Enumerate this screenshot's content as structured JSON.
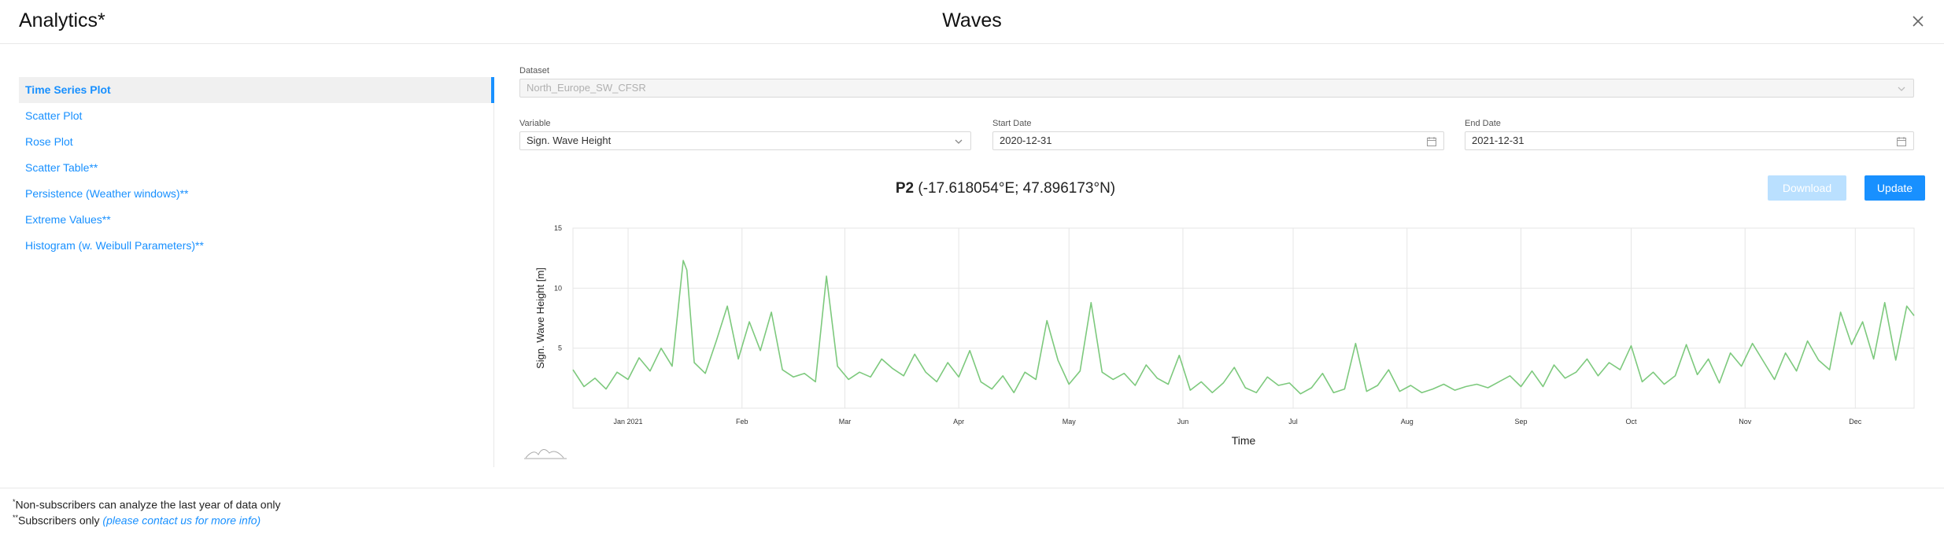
{
  "header": {
    "app_title": "Analytics*",
    "page_title": "Waves",
    "close_icon": "close-icon"
  },
  "sidebar": {
    "items": [
      {
        "label": "Time Series Plot",
        "active": true
      },
      {
        "label": "Scatter Plot"
      },
      {
        "label": "Rose Plot"
      },
      {
        "label": "Scatter Table**"
      },
      {
        "label": "Persistence (Weather windows)**"
      },
      {
        "label": "Extreme Values**"
      },
      {
        "label": "Histogram (w. Weibull Parameters)**"
      }
    ]
  },
  "form": {
    "dataset_label": "Dataset",
    "dataset_value": "North_Europe_SW_CFSR",
    "variable_label": "Variable",
    "variable_value": "Sign. Wave Height",
    "start_label": "Start Date",
    "start_value": "2020-12-31",
    "end_label": "End Date",
    "end_value": "2021-12-31",
    "download_label": "Download",
    "update_label": "Update"
  },
  "chart_title": {
    "point": "P2",
    "coords": "(-17.618054°E; 47.896173°N)"
  },
  "chart_data": {
    "type": "line",
    "title": "P2 (-17.618054°E; 47.896173°N)",
    "xlabel": "Time",
    "ylabel": "Sign. Wave Height [m]",
    "ylim": [
      0,
      15
    ],
    "yticks": [
      5,
      10,
      15
    ],
    "xlim": [
      "2020-12-31",
      "2021-12-31"
    ],
    "xticks": [
      {
        "date": "2021-01-15",
        "label": "Jan 2021"
      },
      {
        "date": "2021-02-15",
        "label": "Feb"
      },
      {
        "date": "2021-03-15",
        "label": "Mar"
      },
      {
        "date": "2021-04-15",
        "label": "Apr"
      },
      {
        "date": "2021-05-15",
        "label": "May"
      },
      {
        "date": "2021-06-15",
        "label": "Jun"
      },
      {
        "date": "2021-07-15",
        "label": "Jul"
      },
      {
        "date": "2021-08-15",
        "label": "Aug"
      },
      {
        "date": "2021-09-15",
        "label": "Sep"
      },
      {
        "date": "2021-10-15",
        "label": "Oct"
      },
      {
        "date": "2021-11-15",
        "label": "Nov"
      },
      {
        "date": "2021-12-15",
        "label": "Dec"
      }
    ],
    "grid": true,
    "line_color": "#7dc97d",
    "series": [
      {
        "x": [
          "2020-12-31",
          "2021-01-03",
          "2021-01-06",
          "2021-01-09",
          "2021-01-12",
          "2021-01-15",
          "2021-01-18",
          "2021-01-21",
          "2021-01-24",
          "2021-01-27",
          "2021-01-30",
          "2021-01-31",
          "2021-02-02",
          "2021-02-05",
          "2021-02-08",
          "2021-02-11",
          "2021-02-14",
          "2021-02-17",
          "2021-02-20",
          "2021-02-23",
          "2021-02-26",
          "2021-03-01",
          "2021-03-04",
          "2021-03-07",
          "2021-03-10",
          "2021-03-13",
          "2021-03-16",
          "2021-03-19",
          "2021-03-22",
          "2021-03-25",
          "2021-03-28",
          "2021-03-31",
          "2021-04-03",
          "2021-04-06",
          "2021-04-09",
          "2021-04-12",
          "2021-04-15",
          "2021-04-18",
          "2021-04-21",
          "2021-04-24",
          "2021-04-27",
          "2021-04-30",
          "2021-05-03",
          "2021-05-06",
          "2021-05-09",
          "2021-05-12",
          "2021-05-15",
          "2021-05-18",
          "2021-05-21",
          "2021-05-24",
          "2021-05-27",
          "2021-05-30",
          "2021-06-02",
          "2021-06-05",
          "2021-06-08",
          "2021-06-11",
          "2021-06-14",
          "2021-06-17",
          "2021-06-20",
          "2021-06-23",
          "2021-06-26",
          "2021-06-29",
          "2021-07-02",
          "2021-07-05",
          "2021-07-08",
          "2021-07-11",
          "2021-07-14",
          "2021-07-17",
          "2021-07-20",
          "2021-07-23",
          "2021-07-26",
          "2021-07-29",
          "2021-08-01",
          "2021-08-04",
          "2021-08-07",
          "2021-08-10",
          "2021-08-13",
          "2021-08-16",
          "2021-08-19",
          "2021-08-22",
          "2021-08-25",
          "2021-08-28",
          "2021-08-31",
          "2021-09-03",
          "2021-09-06",
          "2021-09-09",
          "2021-09-12",
          "2021-09-15",
          "2021-09-18",
          "2021-09-21",
          "2021-09-24",
          "2021-09-27",
          "2021-09-30",
          "2021-10-03",
          "2021-10-06",
          "2021-10-09",
          "2021-10-12",
          "2021-10-15",
          "2021-10-18",
          "2021-10-21",
          "2021-10-24",
          "2021-10-27",
          "2021-10-30",
          "2021-11-02",
          "2021-11-05",
          "2021-11-08",
          "2021-11-11",
          "2021-11-14",
          "2021-11-17",
          "2021-11-20",
          "2021-11-23",
          "2021-11-26",
          "2021-11-29",
          "2021-12-02",
          "2021-12-05",
          "2021-12-08",
          "2021-12-11",
          "2021-12-14",
          "2021-12-17",
          "2021-12-20",
          "2021-12-23",
          "2021-12-26",
          "2021-12-29",
          "2021-12-31"
        ],
        "y": [
          3.2,
          1.8,
          2.5,
          1.6,
          3.0,
          2.4,
          4.2,
          3.1,
          5.0,
          3.5,
          12.3,
          11.5,
          3.8,
          2.9,
          5.6,
          8.5,
          4.1,
          7.2,
          4.8,
          8.0,
          3.2,
          2.6,
          2.9,
          2.2,
          11.0,
          3.5,
          2.4,
          3.0,
          2.6,
          4.1,
          3.3,
          2.7,
          4.5,
          3.0,
          2.2,
          3.8,
          2.6,
          4.8,
          2.2,
          1.6,
          2.7,
          1.3,
          3.0,
          2.4,
          7.3,
          4.0,
          2.0,
          3.1,
          8.8,
          3.0,
          2.4,
          2.9,
          1.9,
          3.6,
          2.5,
          2.0,
          4.4,
          1.5,
          2.2,
          1.3,
          2.1,
          3.4,
          1.7,
          1.3,
          2.6,
          1.9,
          2.1,
          1.2,
          1.7,
          2.9,
          1.3,
          1.6,
          5.4,
          1.4,
          1.9,
          3.2,
          1.4,
          1.9,
          1.3,
          1.6,
          2.0,
          1.5,
          1.8,
          2.0,
          1.7,
          2.2,
          2.7,
          1.8,
          3.1,
          1.8,
          3.6,
          2.5,
          3.0,
          4.1,
          2.7,
          3.8,
          3.2,
          5.2,
          2.2,
          3.0,
          2.0,
          2.7,
          5.3,
          2.8,
          4.1,
          2.1,
          4.6,
          3.5,
          5.4,
          3.9,
          2.4,
          4.6,
          3.1,
          5.6,
          4.0,
          3.2,
          8.0,
          5.3,
          7.2,
          4.1,
          8.8,
          4.0,
          8.5,
          7.7
        ]
      }
    ]
  },
  "footer": {
    "note1_mark": "*",
    "note1_text": "Non-subscribers can analyze the last year of data only",
    "note2_mark": "**",
    "note2_text": "Subscribers only ",
    "note2_link": "(please contact us for more info)"
  }
}
